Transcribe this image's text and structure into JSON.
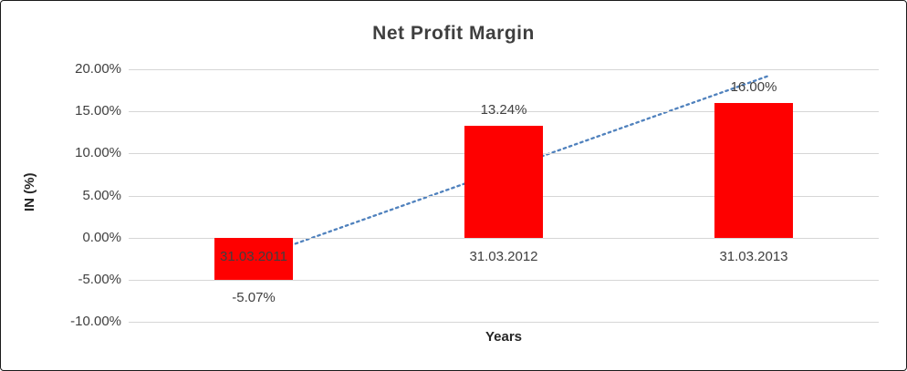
{
  "chart_data": {
    "type": "bar",
    "title": "Net Profit Margin",
    "categories": [
      "31.03.2011",
      "31.03.2012",
      "31.03.2013"
    ],
    "values": [
      -5.07,
      13.24,
      16.0
    ],
    "data_labels": [
      "-5.07%",
      "13.24%",
      "16.00%"
    ],
    "xlabel": "Years",
    "ylabel": "IN (%)",
    "ylim": [
      -10,
      20
    ],
    "ytick_values": [
      20,
      15,
      10,
      5,
      0,
      -5,
      -10
    ],
    "ytick_labels": [
      "20.00%",
      "15.00%",
      "10.00%",
      "5.00%",
      "0.00%",
      "-5.00%",
      "-10.00%"
    ],
    "bar_color": "#fe0000",
    "trendline_color": "#4f81bd",
    "trendline_style": "dotted",
    "grid": true,
    "legend": false
  }
}
